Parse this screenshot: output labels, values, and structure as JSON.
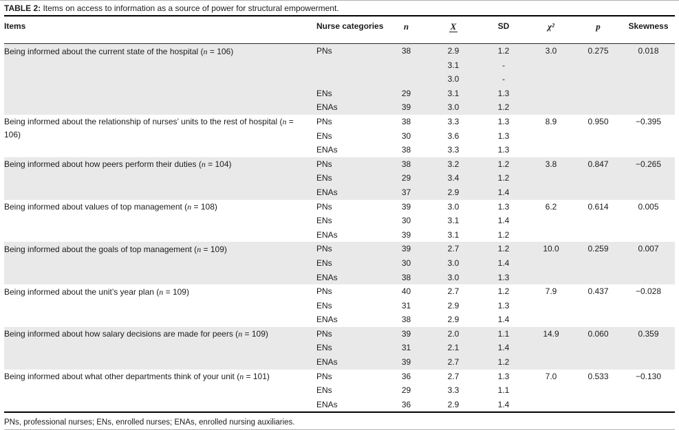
{
  "title": {
    "label": "TABLE 2:",
    "text": "Items on access to information as a source of power for structural empowerment."
  },
  "columns": {
    "items": "Items",
    "category": "Nurse categories",
    "n": "n",
    "mean": "X",
    "sd": "SD",
    "chi": "χ²",
    "p": "p",
    "skewness": "Skewness"
  },
  "colors": {
    "row_shade": "#e9e9e9",
    "rule_heavy": "#000000",
    "rule_light": "#b0b0b0"
  },
  "groups": [
    {
      "item_text": "Being informed about the current state of the hospital",
      "item_n": "106",
      "rows": [
        {
          "cat": "PNs",
          "n": "38",
          "mean": "2.9",
          "sd": "1.2",
          "chi": "3.0",
          "p": "0.275",
          "skew": "0.018"
        },
        {
          "cat": "",
          "n": "",
          "mean": "3.1",
          "sd": "-",
          "chi": "",
          "p": "",
          "skew": ""
        },
        {
          "cat": "",
          "n": "",
          "mean": "3.0",
          "sd": "-",
          "chi": "",
          "p": "",
          "skew": ""
        },
        {
          "cat": "ENs",
          "n": "29",
          "mean": "3.1",
          "sd": "1.3",
          "chi": "",
          "p": "",
          "skew": ""
        },
        {
          "cat": "ENAs",
          "n": "39",
          "mean": "3.0",
          "sd": "1.2",
          "chi": "",
          "p": "",
          "skew": ""
        }
      ]
    },
    {
      "item_text": "Being informed about the relationship of nurses’ units to the rest of hospital",
      "item_n": "106",
      "rows": [
        {
          "cat": "PNs",
          "n": "38",
          "mean": "3.3",
          "sd": "1.3",
          "chi": "8.9",
          "p": "0.950",
          "skew": "−0.395"
        },
        {
          "cat": "ENs",
          "n": "30",
          "mean": "3.6",
          "sd": "1.3",
          "chi": "",
          "p": "",
          "skew": ""
        },
        {
          "cat": "ENAs",
          "n": "38",
          "mean": "3.3",
          "sd": "1.3",
          "chi": "",
          "p": "",
          "skew": ""
        }
      ]
    },
    {
      "item_text": "Being informed about how peers perform their duties",
      "item_n": "104",
      "rows": [
        {
          "cat": "PNs",
          "n": "38",
          "mean": "3.2",
          "sd": "1.2",
          "chi": "3.8",
          "p": "0.847",
          "skew": "−0.265"
        },
        {
          "cat": "ENs",
          "n": "29",
          "mean": "3.4",
          "sd": "1.2",
          "chi": "",
          "p": "",
          "skew": ""
        },
        {
          "cat": "ENAs",
          "n": "37",
          "mean": "2.9",
          "sd": "1.4",
          "chi": "",
          "p": "",
          "skew": ""
        }
      ]
    },
    {
      "item_text": "Being informed about values of top management",
      "item_n": "108",
      "rows": [
        {
          "cat": "PNs",
          "n": "39",
          "mean": "3.0",
          "sd": "1.3",
          "chi": "6.2",
          "p": "0.614",
          "skew": "0.005"
        },
        {
          "cat": "ENs",
          "n": "30",
          "mean": "3.1",
          "sd": "1.4",
          "chi": "",
          "p": "",
          "skew": ""
        },
        {
          "cat": "ENAs",
          "n": "39",
          "mean": "3.1",
          "sd": "1.2",
          "chi": "",
          "p": "",
          "skew": ""
        }
      ]
    },
    {
      "item_text": "Being informed about the goals of top management",
      "item_n": "109",
      "rows": [
        {
          "cat": "PNs",
          "n": "39",
          "mean": "2.7",
          "sd": "1.2",
          "chi": "10.0",
          "p": "0.259",
          "skew": "0.007"
        },
        {
          "cat": "ENs",
          "n": "30",
          "mean": "3.0",
          "sd": "1.4",
          "chi": "",
          "p": "",
          "skew": ""
        },
        {
          "cat": "ENAs",
          "n": "38",
          "mean": "3.0",
          "sd": "1.3",
          "chi": "",
          "p": "",
          "skew": ""
        }
      ]
    },
    {
      "item_text": "Being informed about the unit’s year plan",
      "item_n": "109",
      "rows": [
        {
          "cat": "PNs",
          "n": "40",
          "mean": "2.7",
          "sd": "1.2",
          "chi": "7.9",
          "p": "0.437",
          "skew": "−0.028"
        },
        {
          "cat": "ENs",
          "n": "31",
          "mean": "2.9",
          "sd": "1.3",
          "chi": "",
          "p": "",
          "skew": ""
        },
        {
          "cat": "ENAs",
          "n": "38",
          "mean": "2.9",
          "sd": "1.4",
          "chi": "",
          "p": "",
          "skew": ""
        }
      ]
    },
    {
      "item_text": "Being informed about how salary decisions are made for peers",
      "item_n": "109",
      "rows": [
        {
          "cat": "PNs",
          "n": "39",
          "mean": "2.0",
          "sd": "1.1",
          "chi": "14.9",
          "p": "0.060",
          "skew": "0.359"
        },
        {
          "cat": "ENs",
          "n": "31",
          "mean": "2.1",
          "sd": "1.4",
          "chi": "",
          "p": "",
          "skew": ""
        },
        {
          "cat": "ENAs",
          "n": "39",
          "mean": "2.7",
          "sd": "1.2",
          "chi": "",
          "p": "",
          "skew": ""
        }
      ]
    },
    {
      "item_text": "Being informed about what other departments think of your unit",
      "item_n": "101",
      "rows": [
        {
          "cat": "PNs",
          "n": "36",
          "mean": "2.7",
          "sd": "1.3",
          "chi": "7.0",
          "p": "0.533",
          "skew": "−0.130"
        },
        {
          "cat": "ENs",
          "n": "29",
          "mean": "3.3",
          "sd": "1.1",
          "chi": "",
          "p": "",
          "skew": ""
        },
        {
          "cat": "ENAs",
          "n": "36",
          "mean": "2.9",
          "sd": "1.4",
          "chi": "",
          "p": "",
          "skew": ""
        }
      ]
    }
  ],
  "footnote": "PNs, professional nurses; ENs, enrolled nurses; ENAs, enrolled nursing auxiliaries."
}
